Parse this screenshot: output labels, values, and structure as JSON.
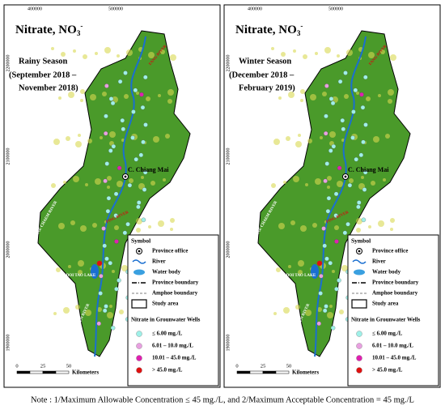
{
  "panels": [
    {
      "title": "Nitrate, NO",
      "title_sub": "3",
      "title_sup": "-",
      "season": "Rainy Season",
      "period_1": "(September 2018 –",
      "period_2": "November 2018)"
    },
    {
      "title": "Nitrate, NO",
      "title_sub": "3",
      "title_sup": "-",
      "season": "Winter Season",
      "period_1": "(December 2018 –",
      "period_2": "February 2019)"
    }
  ],
  "x_ticks": [
    "400000",
    "500000"
  ],
  "y_ticks": [
    "2200000",
    "2100000",
    "2000000",
    "1900000"
  ],
  "places": {
    "city": "C. Chiang Mai",
    "ping": "PING RIVER",
    "fang": "FANG RIVER",
    "lake": "DOI TAO LAKE",
    "chaem": "MAE CHAEM RIVER",
    "tuen": "MAE TUEN RIVER"
  },
  "legend": {
    "title": "Symbol",
    "items": [
      "Province office",
      "River",
      "Water body",
      "Province boundary",
      "Amphoe boundary",
      "Study area"
    ],
    "nitrate_title": "Nitrate in Grounwater Wells",
    "nitrate_items": [
      "≤ 6.00 mg./L",
      "6.01 – 10.0 mg./L",
      "10.01 – 45.0 mg./L",
      "> 45.0 mg./L"
    ]
  },
  "scale": {
    "ticks": [
      "0",
      "25",
      "50"
    ],
    "unit": "Kilometers"
  },
  "note": "Note : 1/Maximum Allowable Concentration ≤ 45 mg./L, and 2/Maximum Acceptable Concentration = 45 mg./L"
}
